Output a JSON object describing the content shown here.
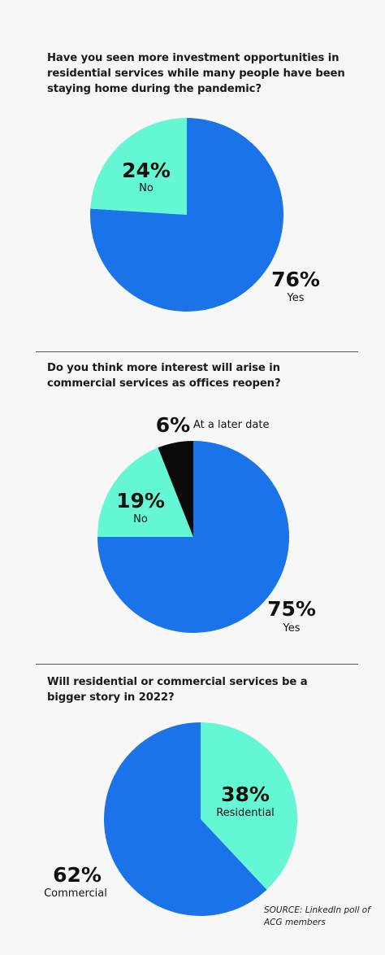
{
  "colors": {
    "blue": "#1a73e8",
    "mint": "#64f7d3",
    "black": "#0a0a0a",
    "background": "#f7f7f7"
  },
  "chart_data": [
    {
      "type": "pie",
      "title": "Have you seen more investment opportunities in residential services while many people have been staying home during the pandemic?",
      "categories": [
        "Yes",
        "No"
      ],
      "values": [
        76,
        24
      ],
      "value_labels": [
        "76%",
        "24%"
      ]
    },
    {
      "type": "pie",
      "title": "Do you think more interest will arise in commercial services as offices reopen?",
      "categories": [
        "Yes",
        "No",
        "At a later date"
      ],
      "values": [
        75,
        19,
        6
      ],
      "value_labels": [
        "75%",
        "19%",
        "6%"
      ]
    },
    {
      "type": "pie",
      "title": "Will residential or commercial services be a bigger story in 2022?",
      "categories": [
        "Residential",
        "Commercial"
      ],
      "values": [
        38,
        62
      ],
      "value_labels": [
        "38%",
        "62%"
      ]
    }
  ],
  "source": "SOURCE: LinkedIn poll of ACG members"
}
